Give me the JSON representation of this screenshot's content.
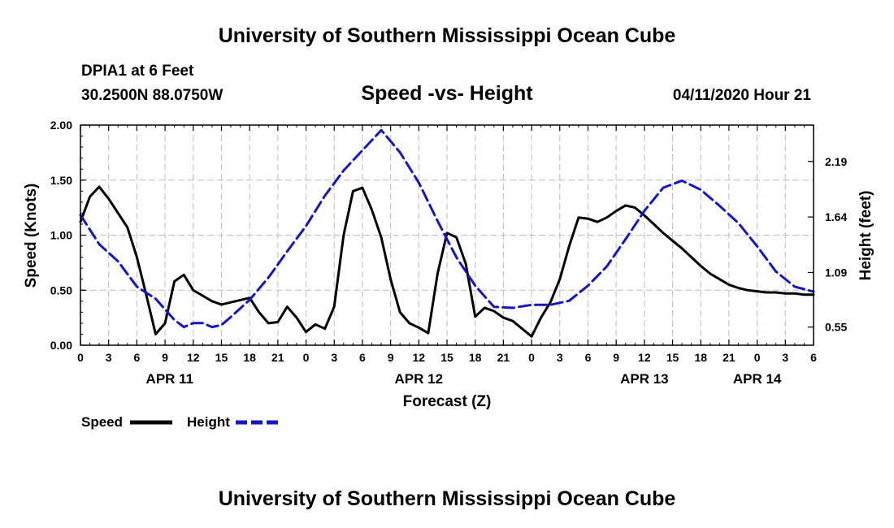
{
  "header": {
    "title_top": "University of Southern Mississippi Ocean Cube",
    "station": "DPIA1 at 6 Feet",
    "coords": "30.2500N 88.0750W",
    "chart_title": "Speed -vs- Height",
    "datestamp": "04/11/2020 Hour 21",
    "title_bottom": "University of Southern Mississippi Ocean Cube"
  },
  "colors": {
    "speed": "#000000",
    "height": "#1515c8",
    "grid": "#bdbdbd"
  },
  "chart_data": {
    "type": "line",
    "title": "Speed -vs- Height",
    "xlabel": "Forecast (Z)",
    "ylabel": "Speed (Knots)",
    "y2label": "Height (feet)",
    "x_range_hours": [
      0,
      78
    ],
    "ylim": [
      0,
      2.0
    ],
    "y2lim": [
      0.37,
      2.55
    ],
    "yticks": [
      "0.00",
      "0.50",
      "1.00",
      "1.50",
      "2.00"
    ],
    "y2ticks": [
      "0.55",
      "1.09",
      "1.64",
      "2.19"
    ],
    "xtick_labels": [
      "0",
      "3",
      "6",
      "9",
      "12",
      "15",
      "18",
      "21",
      "0",
      "3",
      "6",
      "9",
      "12",
      "15",
      "18",
      "21",
      "0",
      "3",
      "6",
      "9",
      "12",
      "15",
      "18",
      "21",
      "0",
      "3",
      "6"
    ],
    "date_labels": [
      {
        "label": "APR 11",
        "hour": 9.5
      },
      {
        "label": "APR 12",
        "hour": 36
      },
      {
        "label": "APR 13",
        "hour": 60
      },
      {
        "label": "APR 14",
        "hour": 72
      }
    ],
    "grid": true,
    "legend": [
      "Speed",
      "Height"
    ],
    "legend_position": "bottom-left",
    "series": [
      {
        "name": "Speed",
        "axis": "left",
        "style": "solid",
        "x": [
          0,
          1,
          2,
          3,
          4,
          5,
          6,
          7,
          8,
          9,
          10,
          11,
          12,
          13,
          14,
          15,
          16,
          17,
          18,
          19,
          20,
          21,
          22,
          23,
          24,
          25,
          26,
          27,
          28,
          29,
          30,
          31,
          32,
          33,
          34,
          35,
          36,
          37,
          38,
          39,
          40,
          41,
          42,
          43,
          44,
          45,
          46,
          47,
          48,
          49,
          50,
          51,
          52,
          53,
          54,
          55,
          56,
          57,
          58,
          59,
          60,
          61,
          62,
          63,
          64,
          65,
          66,
          67,
          68,
          69,
          70,
          71,
          72,
          73,
          74,
          75,
          76,
          77,
          78
        ],
        "values": [
          1.12,
          1.35,
          1.44,
          1.33,
          1.2,
          1.07,
          0.8,
          0.46,
          0.1,
          0.2,
          0.58,
          0.64,
          0.5,
          0.45,
          0.4,
          0.37,
          0.39,
          0.41,
          0.43,
          0.3,
          0.2,
          0.21,
          0.35,
          0.25,
          0.12,
          0.19,
          0.15,
          0.35,
          1.0,
          1.4,
          1.43,
          1.23,
          0.98,
          0.6,
          0.3,
          0.2,
          0.16,
          0.11,
          0.65,
          1.02,
          0.98,
          0.74,
          0.26,
          0.34,
          0.31,
          0.25,
          0.22,
          0.15,
          0.08,
          0.25,
          0.39,
          0.6,
          0.9,
          1.16,
          1.15,
          1.12,
          1.16,
          1.22,
          1.27,
          1.25,
          1.18,
          1.1,
          1.02,
          0.95,
          0.88,
          0.8,
          0.72,
          0.65,
          0.6,
          0.55,
          0.52,
          0.5,
          0.49,
          0.48,
          0.48,
          0.47,
          0.47,
          0.46,
          0.46
        ]
      },
      {
        "name": "Height",
        "axis": "right",
        "style": "dashed",
        "x": [
          0,
          2,
          4,
          6,
          8,
          10,
          11,
          12,
          13,
          14,
          15,
          16,
          18,
          20,
          22,
          24,
          26,
          28,
          30,
          32,
          34,
          36,
          38,
          40,
          42,
          44,
          46,
          48,
          50,
          52,
          54,
          56,
          58,
          60,
          62,
          64,
          66,
          68,
          70,
          72,
          74,
          76,
          78
        ],
        "values": [
          1.66,
          1.37,
          1.2,
          0.95,
          0.83,
          0.62,
          0.55,
          0.59,
          0.59,
          0.55,
          0.57,
          0.65,
          0.82,
          1.04,
          1.3,
          1.55,
          1.85,
          2.1,
          2.3,
          2.5,
          2.28,
          1.98,
          1.6,
          1.24,
          0.96,
          0.75,
          0.74,
          0.77,
          0.77,
          0.81,
          0.96,
          1.15,
          1.42,
          1.7,
          1.93,
          2.0,
          1.91,
          1.75,
          1.58,
          1.35,
          1.1,
          0.95,
          0.9
        ]
      }
    ]
  },
  "legend": {
    "speed_label": "Speed",
    "height_label": "Height"
  }
}
